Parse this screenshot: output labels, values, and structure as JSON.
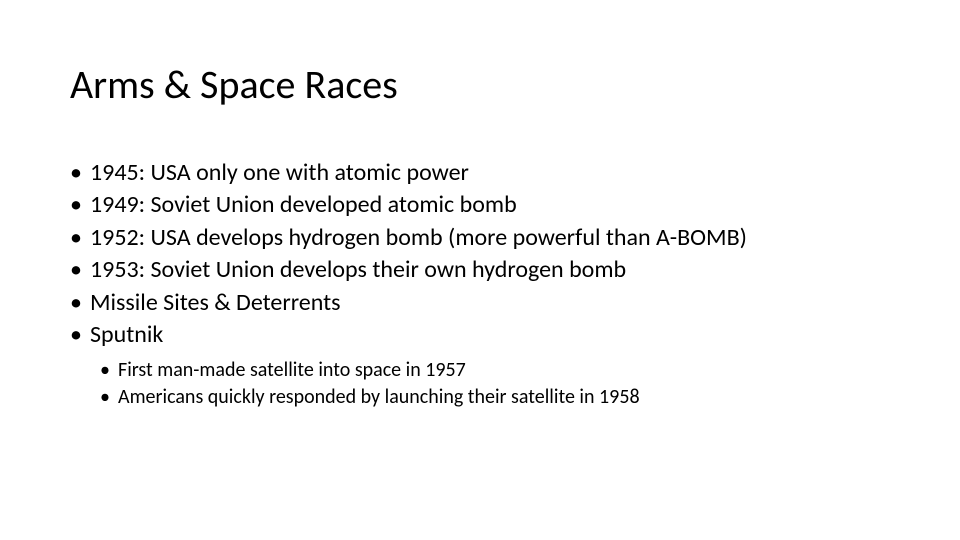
{
  "slide": {
    "title": "Arms & Space Races",
    "bullets": [
      "1945: USA only one with atomic power",
      "1949: Soviet Union developed atomic bomb",
      "1952: USA develops hydrogen bomb (more powerful than A-BOMB)",
      "1953: Soviet Union develops their own hydrogen bomb",
      "Missile Sites & Deterrents",
      "Sputnik"
    ],
    "sub_bullets": [
      "First man-made satellite into space in 1957",
      "Americans quickly responded by launching their satellite in 1958"
    ]
  },
  "style": {
    "background_color": "#ffffff",
    "text_color": "#000000",
    "title_fontsize": 40,
    "bullet_fontsize": 24,
    "sub_bullet_fontsize": 20,
    "font_family": "Calibri"
  }
}
